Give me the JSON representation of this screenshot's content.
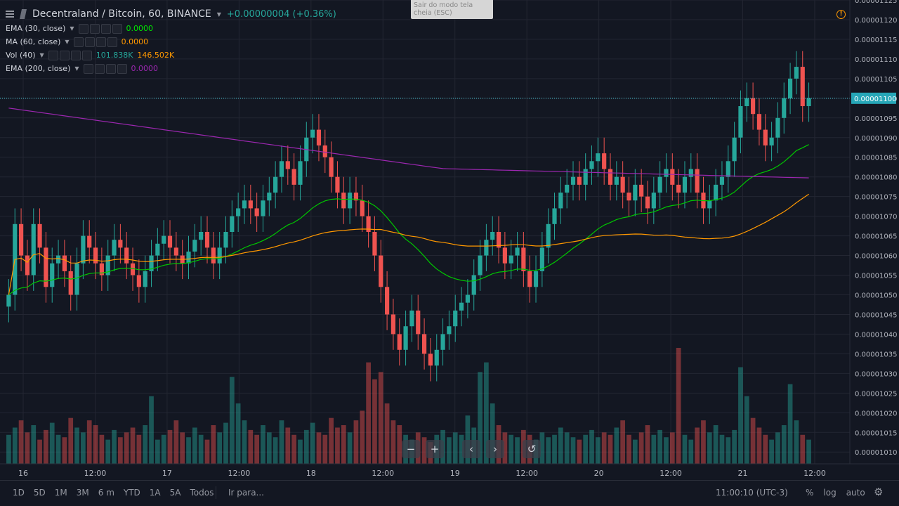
{
  "header": {
    "symbol_title": "Decentraland / Bitcoin, 60, BINANCE",
    "change": "+0.00000004 (+0.36%)"
  },
  "indicators": [
    {
      "label": "EMA (30, close)",
      "value": "0.0000",
      "value2": "",
      "color": "#00e600",
      "color2": ""
    },
    {
      "label": "MA (60, close)",
      "value": "0.0000",
      "value2": "",
      "color": "#ff9800",
      "color2": ""
    },
    {
      "label": "Vol (40)",
      "value": "101.838K",
      "value2": "146.502K",
      "color": "#26a69a",
      "color2": "#ff9800"
    },
    {
      "label": "EMA (200, close)",
      "value": "0.0000",
      "value2": "",
      "color": "#9c27b0",
      "color2": ""
    }
  ],
  "toast": "Sair do modo tela cheia (ESC)",
  "bottom": {
    "ranges": [
      "1D",
      "5D",
      "1M",
      "3M",
      "6 m",
      "YTD",
      "1A",
      "5A",
      "Todos"
    ],
    "goto": "Ir para...",
    "time": "11:00:10 (UTC-3)",
    "options": [
      "%",
      "log",
      "auto"
    ]
  },
  "nav_icons": [
    "zoom-out",
    "zoom-in",
    "scroll-left",
    "scroll-right",
    "reset"
  ],
  "chart_data": {
    "type": "candlestick",
    "price_tick_labels": [
      "0.00001010",
      "0.00001015",
      "0.00001020",
      "0.00001025",
      "0.00001030",
      "0.00001035",
      "0.00001040",
      "0.00001045",
      "0.00001050",
      "0.00001055",
      "0.00001060",
      "0.00001065",
      "0.00001070",
      "0.00001075",
      "0.00001080",
      "0.00001085",
      "0.00001090",
      "0.00001095",
      "0.00001100",
      "0.00001105",
      "0.00001110",
      "0.00001115",
      "0.00001120",
      "0.00001125"
    ],
    "price_range": [
      1.007e-05,
      1.125e-05
    ],
    "current_price": "0.00001100",
    "time_tick_labels": [
      "16",
      "12:00",
      "17",
      "12:00",
      "18",
      "12:00",
      "19",
      "12:00",
      "20",
      "12:00",
      "21",
      "12:00"
    ],
    "colors": {
      "up": "#26a69a",
      "down": "#ef5350",
      "ema30": "#00c800",
      "ma60": "#ff9800",
      "ema200": "#9c27b0",
      "price_line": "#4dd0e1"
    },
    "closes": [
      10.5,
      10.68,
      10.6,
      10.55,
      10.68,
      10.62,
      10.52,
      10.58,
      10.6,
      10.56,
      10.5,
      10.58,
      10.65,
      10.62,
      10.58,
      10.55,
      10.6,
      10.64,
      10.62,
      10.58,
      10.55,
      10.52,
      10.56,
      10.6,
      10.63,
      10.65,
      10.62,
      10.6,
      10.58,
      10.61,
      10.64,
      10.66,
      10.62,
      10.58,
      10.62,
      10.66,
      10.7,
      10.72,
      10.74,
      10.72,
      10.7,
      10.74,
      10.76,
      10.8,
      10.84,
      10.82,
      10.78,
      10.84,
      10.9,
      10.92,
      10.88,
      10.85,
      10.8,
      10.76,
      10.72,
      10.76,
      10.74,
      10.7,
      10.66,
      10.6,
      10.52,
      10.45,
      10.4,
      10.36,
      10.42,
      10.46,
      10.4,
      10.35,
      10.32,
      10.36,
      10.4,
      10.42,
      10.46,
      10.48,
      10.5,
      10.55,
      10.6,
      10.64,
      10.66,
      10.62,
      10.58,
      10.6,
      10.62,
      10.56,
      10.52,
      10.56,
      10.62,
      10.68,
      10.72,
      10.76,
      10.78,
      10.8,
      10.78,
      10.82,
      10.84,
      10.86,
      10.82,
      10.78,
      10.8,
      10.76,
      10.74,
      10.78,
      10.75,
      10.72,
      10.76,
      10.8,
      10.82,
      10.78,
      10.76,
      10.8,
      10.82,
      10.76,
      10.72,
      10.74,
      10.78,
      10.8,
      10.84,
      10.9,
      10.98,
      11.0,
      10.96,
      10.92,
      10.88,
      10.9,
      10.95,
      11.0,
      11.05,
      11.08,
      10.98,
      11.0
    ],
    "volumes": [
      1.2,
      1.5,
      1.8,
      1.3,
      1.6,
      1.0,
      1.4,
      1.7,
      1.2,
      1.1,
      1.9,
      1.5,
      1.3,
      1.8,
      1.6,
      1.2,
      1.0,
      1.4,
      1.1,
      1.3,
      1.5,
      1.2,
      1.6,
      2.8,
      1.0,
      1.2,
      1.4,
      1.8,
      1.3,
      1.1,
      1.5,
      1.2,
      1.0,
      1.6,
      1.3,
      1.7,
      3.6,
      2.5,
      1.8,
      1.4,
      1.2,
      1.6,
      1.3,
      1.1,
      1.8,
      1.5,
      1.2,
      1.0,
      1.4,
      1.7,
      1.3,
      1.2,
      1.9,
      1.5,
      1.6,
      1.3,
      1.8,
      2.2,
      4.2,
      3.5,
      3.8,
      2.5,
      1.8,
      1.6,
      1.2,
      1.0,
      1.3,
      1.1,
      0.9,
      1.2,
      1.4,
      1.1,
      1.3,
      1.2,
      2.0,
      1.5,
      3.8,
      4.2,
      2.5,
      1.6,
      1.3,
      1.2,
      1.1,
      1.4,
      1.2,
      1.0,
      1.3,
      1.1,
      1.2,
      1.5,
      1.3,
      1.1,
      1.0,
      1.2,
      1.4,
      1.1,
      1.3,
      1.2,
      1.5,
      1.8,
      1.2,
      1.0,
      1.3,
      1.6,
      1.2,
      1.4,
      1.1,
      1.3,
      4.8,
      1.2,
      1.0,
      1.5,
      1.8,
      1.3,
      1.6,
      1.2,
      1.1,
      1.4,
      4.0,
      2.8,
      1.9,
      1.5,
      1.2,
      1.0,
      1.3,
      1.6,
      3.3,
      1.8,
      1.2,
      1.0
    ]
  }
}
